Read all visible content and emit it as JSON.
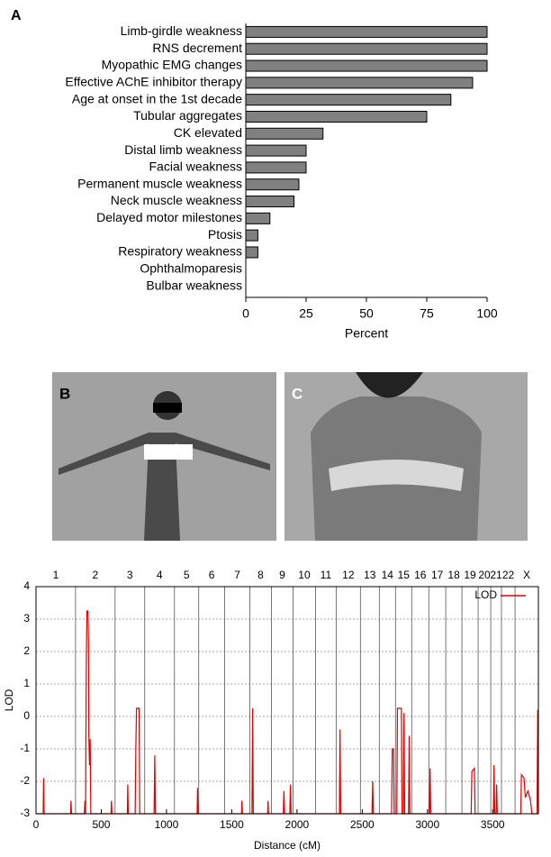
{
  "panel_labels": [
    "A",
    "B",
    "C"
  ],
  "chart_data": [
    {
      "type": "bar",
      "orientation": "horizontal",
      "xlabel": "Percent",
      "color": "#808080",
      "categories": [
        "Limb-girdle weakness",
        "RNS decrement",
        "Myopathic EMG changes",
        "Effective AChE inhibitor therapy",
        "Age at onset in the 1st decade",
        "Tubular aggregates",
        "CK elevated",
        "Distal limb weakness",
        "Facial weakness",
        "Permanent muscle weakness",
        "Neck muscle weakness",
        "Delayed motor milestones",
        "Ptosis",
        "Respiratory weakness",
        "Ophthalmoparesis",
        "Bulbar weakness"
      ],
      "values": [
        100,
        100,
        100,
        94,
        85,
        75,
        32,
        25,
        25,
        22,
        20,
        10,
        5,
        5,
        0,
        0
      ],
      "xlim": [
        0,
        100
      ],
      "xticks": [
        0,
        25,
        50,
        75,
        100
      ]
    },
    {
      "type": "line",
      "xlabel": "Distance (cM)",
      "ylabel": "LOD",
      "legend": "upper right",
      "grid": true,
      "chromosomes": [
        "1",
        "2",
        "3",
        "4",
        "5",
        "6",
        "7",
        "8",
        "9",
        "10",
        "11",
        "12",
        "13",
        "14",
        "15",
        "16",
        "17",
        "18",
        "19",
        "20",
        "21",
        "22",
        "X"
      ],
      "chromosome_boundaries": [
        303,
        606,
        833,
        1061,
        1247,
        1446,
        1639,
        1804,
        1970,
        2142,
        2300,
        2486,
        2631,
        2755,
        2879,
        3010,
        3140,
        3264,
        3388,
        3485,
        3567,
        3671
      ],
      "xlim": [
        0,
        3850
      ],
      "xticks": [
        0,
        500,
        1000,
        1500,
        2000,
        2500,
        3000,
        3500
      ],
      "ylim": [
        -3,
        4
      ],
      "yticks": [
        -3,
        -2,
        -1,
        0,
        1,
        2,
        3,
        4
      ],
      "series": [
        {
          "name": "LOD",
          "color": "#e00000",
          "x": [
            0,
            55,
            58,
            62,
            265,
            268,
            272,
            370,
            375,
            380,
            385,
            390,
            398,
            402,
            405,
            410,
            415,
            420,
            575,
            578,
            582,
            700,
            703,
            707,
            760,
            765,
            770,
            790,
            795,
            905,
            910,
            915,
            1235,
            1238,
            1242,
            1575,
            1578,
            1582,
            1655,
            1660,
            1665,
            1775,
            1778,
            1782,
            1895,
            1900,
            1905,
            1945,
            1950,
            1955,
            2325,
            2330,
            2335,
            2575,
            2580,
            2585,
            2725,
            2730,
            2740,
            2745,
            2765,
            2770,
            2800,
            2805,
            2815,
            2820,
            2825,
            2855,
            2860,
            2865,
            3015,
            3020,
            3025,
            3335,
            3340,
            3360,
            3365,
            3505,
            3510,
            3515,
            3525,
            3530,
            3535,
            3715,
            3720,
            3740,
            3750,
            3770,
            3790,
            3800,
            3840,
            3845,
            3850
          ],
          "values": [
            -3,
            -3,
            -1.9,
            -3,
            -3,
            -2.6,
            -3,
            -3,
            -2.6,
            -3,
            1.6,
            3.25,
            3.25,
            2.3,
            -0.6,
            -1.5,
            -0.7,
            -3,
            -3,
            -2.6,
            -3,
            -3,
            -2.1,
            -3,
            -3,
            -1,
            0.25,
            0.25,
            -3,
            -3,
            -1.2,
            -3,
            -3,
            -2.2,
            -3,
            -3,
            -2.6,
            -3,
            -3,
            0.25,
            -3,
            -3,
            -2.6,
            -3,
            -3,
            -2.3,
            -3,
            -3,
            -2.1,
            -3,
            -3,
            -0.4,
            -3,
            -3,
            -2,
            -3,
            -3,
            -1,
            -1,
            -3,
            -3,
            0.25,
            0.25,
            -3,
            -3,
            0.1,
            -3,
            -3,
            -0.6,
            -3,
            -3,
            -1.6,
            -3,
            -3,
            -1.7,
            -1.6,
            -3,
            -3,
            -1.5,
            -3,
            -3,
            -2.1,
            -3,
            -3,
            -1.8,
            -1.9,
            -2.5,
            -2.3,
            -2.6,
            -3,
            -3,
            0.2,
            -3
          ]
        }
      ]
    }
  ]
}
